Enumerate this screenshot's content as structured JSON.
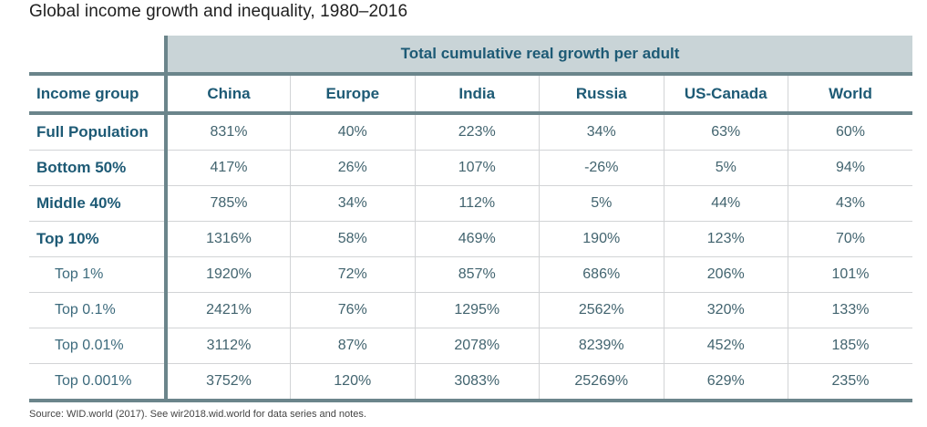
{
  "title": "Global income growth and inequality, 1980–2016",
  "band_header": "Total cumulative real growth per adult",
  "columns": {
    "label": "Income group",
    "regions": [
      "China",
      "Europe",
      "India",
      "Russia",
      "US-Canada",
      "World"
    ]
  },
  "rows": [
    {
      "group": "Full Population",
      "level": "major",
      "values": [
        "831%",
        "40%",
        "223%",
        "34%",
        "63%",
        "60%"
      ]
    },
    {
      "group": "Bottom 50%",
      "level": "major",
      "values": [
        "417%",
        "26%",
        "107%",
        "-26%",
        "5%",
        "94%"
      ]
    },
    {
      "group": "Middle 40%",
      "level": "major",
      "values": [
        "785%",
        "34%",
        "112%",
        "5%",
        "44%",
        "43%"
      ]
    },
    {
      "group": "Top 10%",
      "level": "major",
      "values": [
        "1316%",
        "58%",
        "469%",
        "190%",
        "123%",
        "70%"
      ]
    },
    {
      "group": "Top 1%",
      "level": "minor",
      "values": [
        "1920%",
        "72%",
        "857%",
        "686%",
        "206%",
        "101%"
      ]
    },
    {
      "group": "Top 0.1%",
      "level": "minor",
      "values": [
        "2421%",
        "76%",
        "1295%",
        "2562%",
        "320%",
        "133%"
      ]
    },
    {
      "group": "Top 0.01%",
      "level": "minor",
      "values": [
        "3112%",
        "87%",
        "2078%",
        "8239%",
        "452%",
        "185%"
      ]
    },
    {
      "group": "Top 0.001%",
      "level": "minor",
      "values": [
        "3752%",
        "120%",
        "3083%",
        "25269%",
        "629%",
        "235%"
      ]
    }
  ],
  "source": "Source: WID.world (2017). See wir2018.wid.world for data series and notes."
}
